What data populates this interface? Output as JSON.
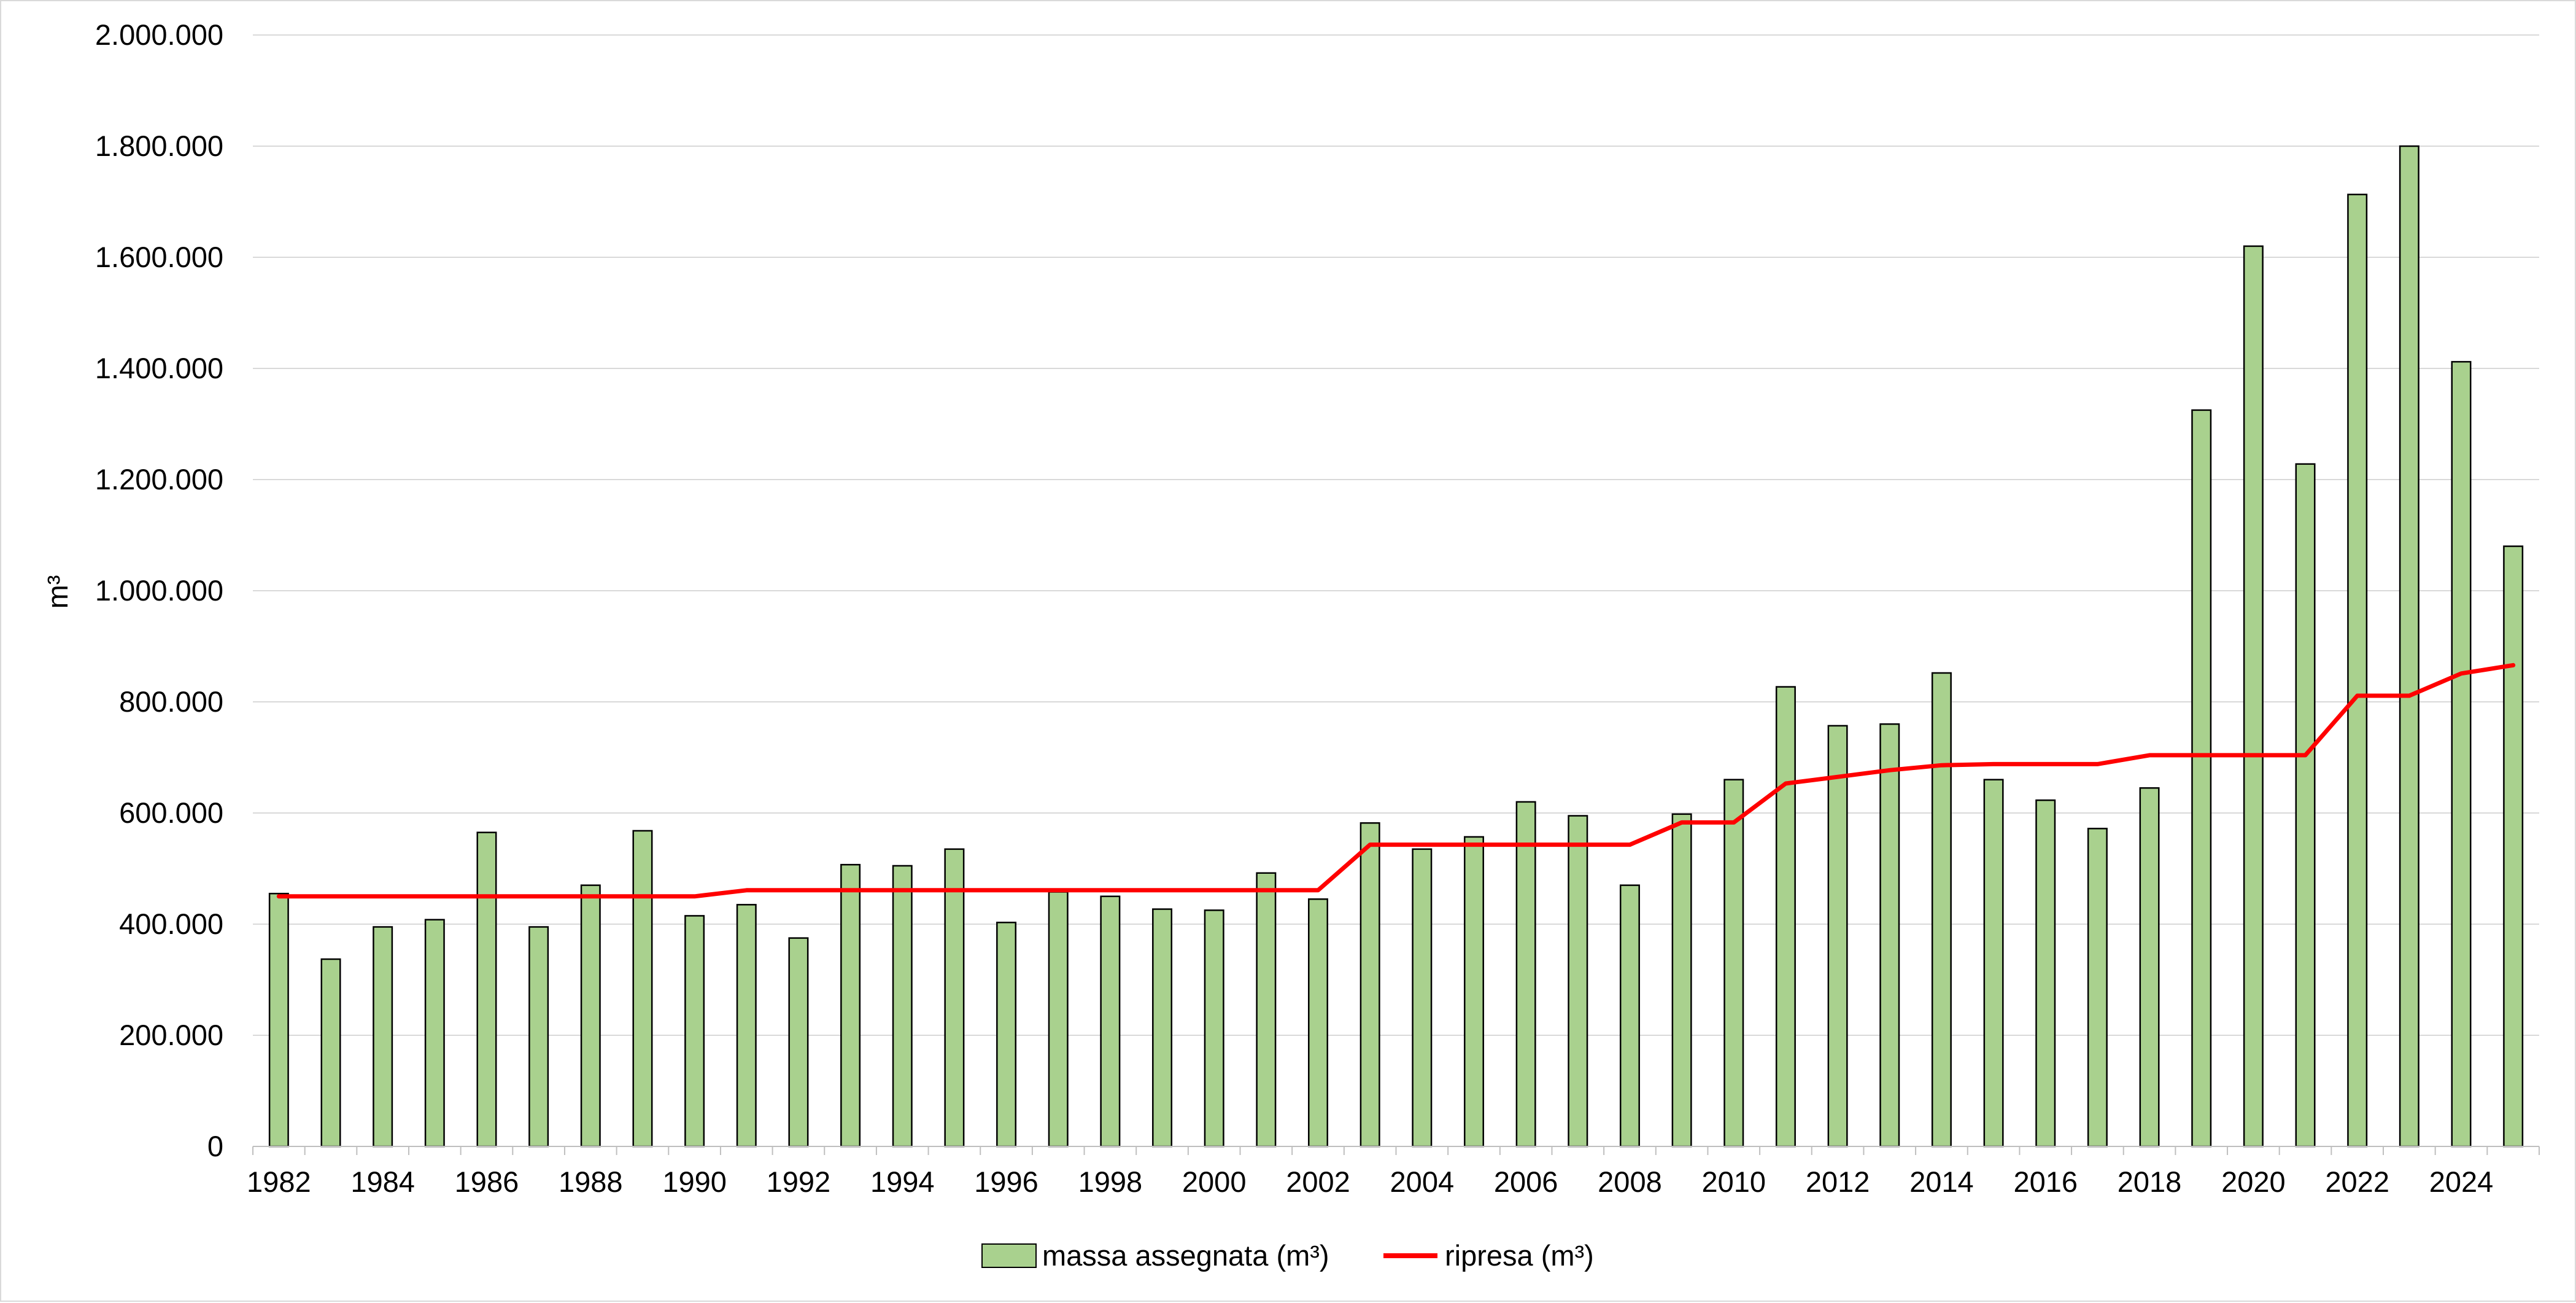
{
  "chart_data": {
    "type": "bar",
    "title": "",
    "xlabel": "",
    "ylabel": "m³",
    "ylim": [
      0,
      2000000
    ],
    "y_ticks": [
      0,
      200000,
      400000,
      600000,
      800000,
      1000000,
      1200000,
      1400000,
      1600000,
      1800000,
      2000000
    ],
    "y_tick_labels": [
      "0",
      "200.000",
      "400.000",
      "600.000",
      "800.000",
      "1.000.000",
      "1.200.000",
      "1.400.000",
      "1.600.000",
      "1.800.000",
      "2.000.000"
    ],
    "grid": true,
    "legend_position": "bottom",
    "categories": [
      "1982",
      "1983",
      "1984",
      "1985",
      "1986",
      "1987",
      "1988",
      "1989",
      "1990",
      "1991",
      "1992",
      "1993",
      "1994",
      "1995",
      "1996",
      "1997",
      "1998",
      "1999",
      "2000",
      "2001",
      "2002",
      "2003",
      "2004",
      "2005",
      "2006",
      "2007",
      "2008",
      "2009",
      "2010",
      "2011",
      "2012",
      "2013",
      "2014",
      "2015",
      "2016",
      "2017",
      "2018",
      "2019",
      "2020",
      "2021",
      "2022",
      "2023",
      "2024",
      "2025"
    ],
    "x_tick_labels": [
      "1982",
      "",
      "1984",
      "",
      "1986",
      "",
      "1988",
      "",
      "1990",
      "",
      "1992",
      "",
      "1994",
      "",
      "1996",
      "",
      "1998",
      "",
      "2000",
      "",
      "2002",
      "",
      "2004",
      "",
      "2006",
      "",
      "2008",
      "",
      "2010",
      "",
      "2012",
      "",
      "2014",
      "",
      "2016",
      "",
      "2018",
      "",
      "2020",
      "",
      "2022",
      "",
      "2024",
      ""
    ],
    "series": [
      {
        "name": "massa assegnata (m³)",
        "kind": "bar",
        "color": "#a9d18e",
        "border_color": "#000000",
        "values": [
          455000,
          337000,
          395000,
          408000,
          565000,
          395000,
          470000,
          568000,
          415000,
          435000,
          375000,
          507000,
          505000,
          535000,
          403000,
          458000,
          450000,
          427000,
          425000,
          492000,
          445000,
          582000,
          535000,
          557000,
          620000,
          595000,
          470000,
          598000,
          660000,
          827000,
          757000,
          760000,
          852000,
          660000,
          623000,
          572000,
          645000,
          1325000,
          1620000,
          1228000,
          1713000,
          1800000,
          1412000,
          1080000
        ]
      },
      {
        "name": "ripresa (m³)",
        "kind": "line",
        "color": "#ff0000",
        "values": [
          450000,
          450000,
          450000,
          450000,
          450000,
          450000,
          450000,
          450000,
          450000,
          461000,
          461000,
          461000,
          461000,
          461000,
          461000,
          461000,
          461000,
          461000,
          461000,
          461000,
          461000,
          543000,
          543000,
          543000,
          543000,
          543000,
          543000,
          583000,
          583000,
          653000,
          665000,
          677000,
          686000,
          688000,
          688000,
          688000,
          704000,
          704000,
          704000,
          704000,
          811000,
          811000,
          851000,
          866000
        ]
      }
    ]
  }
}
